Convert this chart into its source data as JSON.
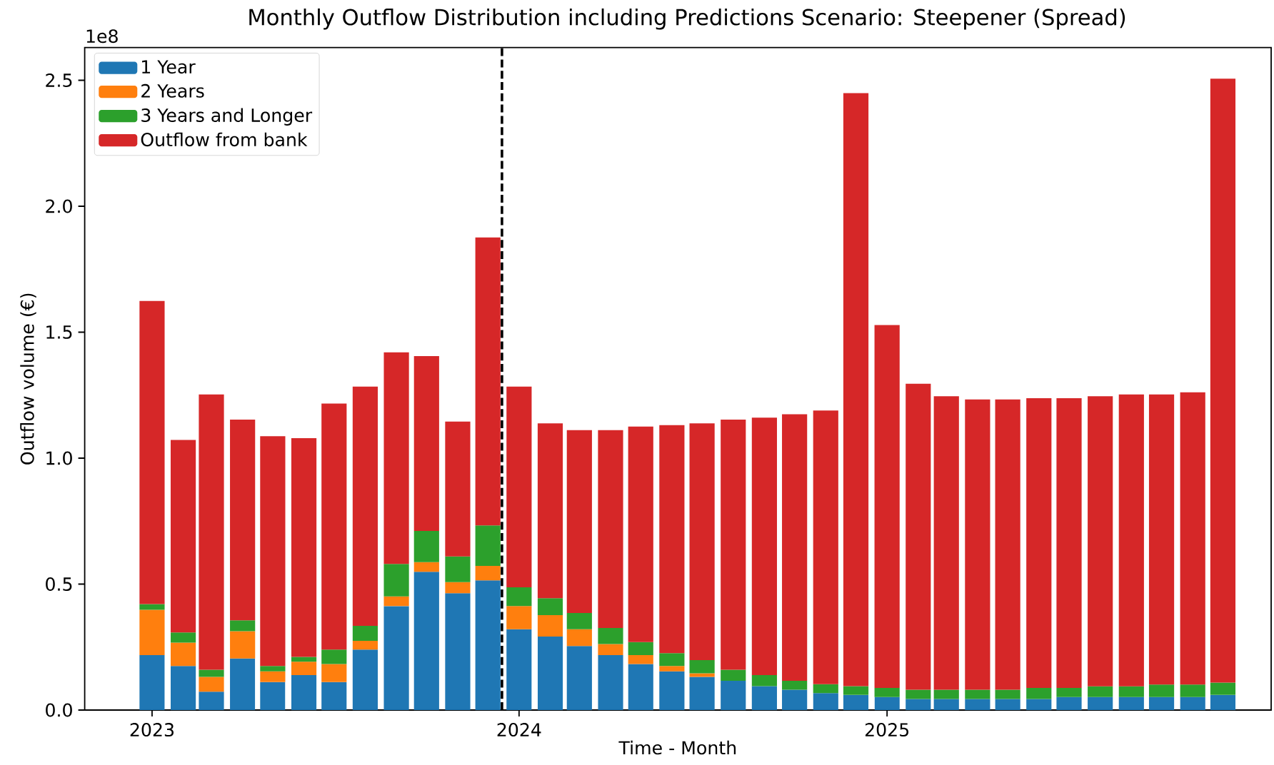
{
  "chart_data": {
    "type": "bar",
    "stacked": true,
    "title": "Monthly Outflow Distribution including Predictions Scenario: Steepener (Spread)",
    "xlabel": "Time - Month",
    "ylabel": "Outflow volume (€)",
    "annotations": [
      "1e8"
    ],
    "x": [
      "2023-01",
      "2023-02",
      "2023-03",
      "2023-04",
      "2023-05",
      "2023-06",
      "2023-07",
      "2023-08",
      "2023-09",
      "2023-10",
      "2023-11",
      "2023-12",
      "2024-01",
      "2024-02",
      "2024-03",
      "2024-04",
      "2024-05",
      "2024-06",
      "2024-07",
      "2024-08",
      "2024-09",
      "2024-10",
      "2024-11",
      "2024-12",
      "2025-01",
      "2025-02",
      "2025-03",
      "2025-04",
      "2025-05",
      "2025-06",
      "2025-07",
      "2025-08",
      "2025-09",
      "2025-10",
      "2025-11",
      "2025-12"
    ],
    "xlim": [
      "2022-10-26",
      "2026-01-18"
    ],
    "xticks": [
      "2023",
      "2024",
      "2025"
    ],
    "ylim": [
      0,
      2.63
    ],
    "yticks": [
      {
        "value": 0,
        "label": "0.0"
      },
      0.5,
      {
        "value": 1,
        "label": "1.0"
      },
      1.5,
      {
        "value": 2,
        "label": "2.0"
      },
      2.5
    ],
    "legend": "top left",
    "ref_lines": [
      {
        "axis": "x",
        "value": "2023-12-15",
        "color": "#000000",
        "line_style": "dashed"
      }
    ],
    "series": [
      {
        "name": "1 Year",
        "color": "#1f77b4",
        "values": [
          0.218,
          0.175,
          0.073,
          0.205,
          0.111,
          0.139,
          0.111,
          0.24,
          0.413,
          0.549,
          0.464,
          0.515,
          0.321,
          0.292,
          0.254,
          0.218,
          0.183,
          0.154,
          0.132,
          0.116,
          0.095,
          0.081,
          0.067,
          0.06,
          0.052,
          0.044,
          0.044,
          0.044,
          0.044,
          0.044,
          0.052,
          0.052,
          0.052,
          0.052,
          0.052,
          0.06
        ]
      },
      {
        "name": "2 Years",
        "color": "#ff7f0e",
        "values": [
          0.18,
          0.093,
          0.059,
          0.108,
          0.043,
          0.053,
          0.072,
          0.035,
          0.038,
          0.038,
          0.044,
          0.057,
          0.092,
          0.085,
          0.067,
          0.044,
          0.035,
          0.021,
          0.014,
          null,
          null,
          null,
          null,
          null,
          null,
          null,
          null,
          null,
          null,
          null,
          null,
          null,
          null,
          null,
          null,
          null
        ]
      },
      {
        "name": "3 Years and Longer",
        "color": "#2ca02c",
        "values": [
          0.023,
          0.04,
          0.028,
          0.043,
          0.021,
          0.019,
          0.057,
          0.059,
          0.129,
          0.124,
          0.102,
          0.161,
          0.074,
          0.067,
          0.064,
          0.064,
          0.052,
          0.051,
          0.052,
          0.044,
          0.044,
          0.035,
          0.036,
          0.035,
          0.036,
          0.037,
          0.037,
          0.037,
          0.037,
          0.044,
          0.036,
          0.042,
          0.042,
          0.049,
          0.049,
          0.049
        ]
      },
      {
        "name": "Outflow from bank",
        "color": "#d62728",
        "values": [
          1.203,
          0.764,
          1.093,
          0.797,
          0.912,
          0.868,
          0.977,
          0.95,
          0.84,
          0.694,
          0.535,
          1.143,
          0.797,
          0.694,
          0.726,
          0.785,
          0.855,
          0.905,
          0.94,
          0.993,
          1.022,
          1.058,
          1.086,
          2.354,
          1.44,
          1.214,
          1.165,
          1.152,
          1.152,
          1.15,
          1.15,
          1.152,
          1.159,
          1.152,
          1.16,
          2.397
        ]
      }
    ]
  }
}
